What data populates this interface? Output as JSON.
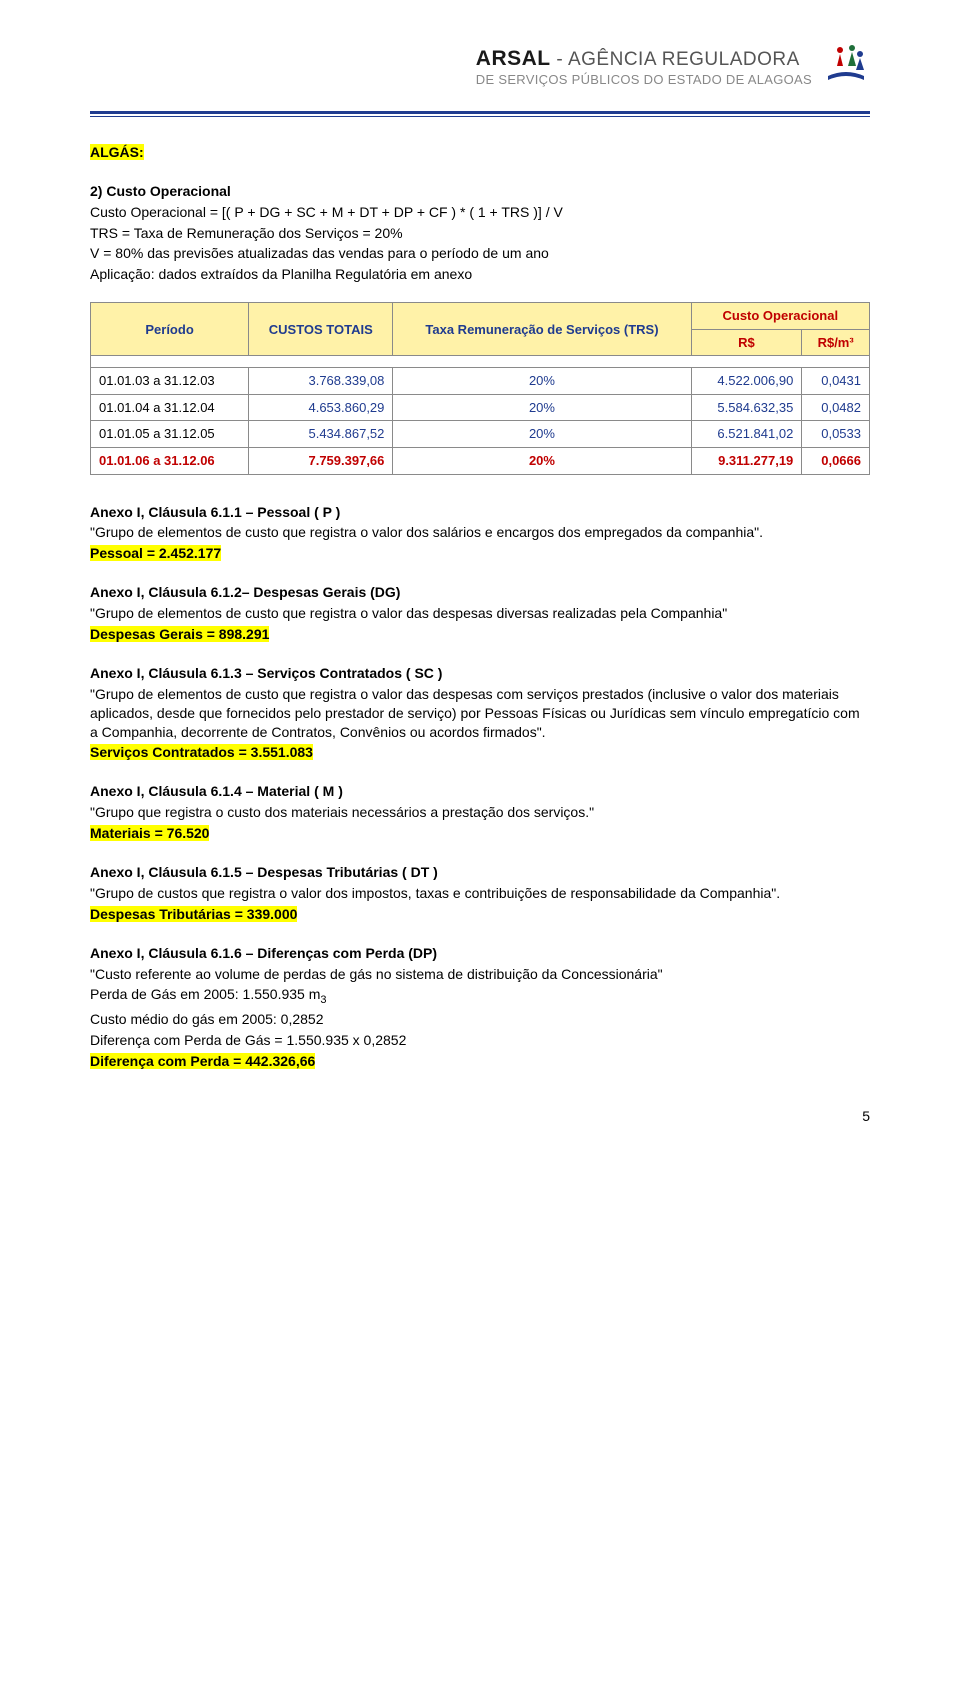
{
  "header": {
    "brand_main": "ARSAL",
    "brand_sep": " - ",
    "brand_sub1": "AGÊNCIA REGULADORA",
    "brand_sub2": "DE SERVIÇOS PÚBLICOS DO ESTADO DE ALAGOAS"
  },
  "title_hl": "ALGÁS:",
  "intro": {
    "line1": "2) Custo Operacional",
    "line2": "Custo Operacional = [( P + DG + SC + M + DT + DP + CF ) * ( 1 + TRS )] / V",
    "line3": "TRS = Taxa de Remuneração dos Serviços = 20%",
    "line4": "V = 80% das previsões atualizadas das vendas para o período de um ano",
    "line5": "Aplicação: dados extraídos da Planilha Regulatória em anexo"
  },
  "table": {
    "headers": {
      "periodo": "Período",
      "custos": "CUSTOS TOTAIS",
      "trs": "Taxa Remuneração de Serviços (TRS)",
      "co": "Custo Operacional",
      "rs": "R$",
      "rsm3": "R$/m³"
    },
    "rows": [
      {
        "periodo": "01.01.03 a 31.12.03",
        "custos": "3.768.339,08",
        "trs": "20%",
        "rs": "4.522.006,90",
        "rsm3": "0,0431",
        "red": false
      },
      {
        "periodo": "01.01.04 a 31.12.04",
        "custos": "4.653.860,29",
        "trs": "20%",
        "rs": "5.584.632,35",
        "rsm3": "0,0482",
        "red": false
      },
      {
        "periodo": "01.01.05 a 31.12.05",
        "custos": "5.434.867,52",
        "trs": "20%",
        "rs": "6.521.841,02",
        "rsm3": "0,0533",
        "red": false
      },
      {
        "periodo": "01.01.06 a 31.12.06",
        "custos": "7.759.397,66",
        "trs": "20%",
        "rs": "9.311.277,19",
        "rsm3": "0,0666",
        "red": true
      }
    ]
  },
  "clauses": {
    "c611": {
      "heading": "Anexo I, Cláusula 6.1.1 – Pessoal ( P )",
      "body": "\"Grupo de elementos de custo que registra o valor dos salários e encargos dos empregados da companhia\".",
      "hl": "Pessoal = 2.452.177"
    },
    "c612": {
      "heading": "Anexo I, Cláusula 6.1.2– Despesas Gerais (DG)",
      "body": "\"Grupo de elementos de custo que registra o valor das despesas diversas realizadas pela Companhia\"",
      "hl": "Despesas Gerais = 898.291"
    },
    "c613": {
      "heading": "Anexo I, Cláusula 6.1.3 – Serviços Contratados ( SC )",
      "body": "\"Grupo de elementos de custo que registra o valor das despesas com serviços prestados (inclusive o valor dos materiais aplicados, desde que fornecidos pelo prestador de serviço) por Pessoas Físicas ou Jurídicas sem vínculo empregatício com a Companhia, decorrente de Contratos, Convênios ou acordos firmados\".",
      "hl": "Serviços Contratados = 3.551.083"
    },
    "c614": {
      "heading": "Anexo I, Cláusula 6.1.4 – Material ( M )",
      "body": "\"Grupo que registra o custo dos materiais necessários a prestação dos serviços.\"",
      "hl": "Materiais = 76.520"
    },
    "c615": {
      "heading": "Anexo I, Cláusula 6.1.5 – Despesas Tributárias ( DT )",
      "body": "\"Grupo de custos que registra o valor dos impostos, taxas e contribuições de responsabilidade da Companhia\".",
      "hl": "Despesas Tributárias = 339.000"
    },
    "c616": {
      "heading": "Anexo I, Cláusula 6.1.6 – Diferenças com Perda (DP)",
      "body": "\"Custo referente ao volume de perdas de gás no sistema de distribuição da Concessionária\"",
      "l1a": "Perda de Gás em 2005: 1.550.935 m",
      "l1b": "3",
      "l2": "Custo médio do gás em 2005: 0,2852",
      "l3": "Diferença com Perda de Gás = 1.550.935 x 0,2852",
      "hl": "Diferença com Perda = 442.326,66"
    }
  },
  "page_number": "5"
}
